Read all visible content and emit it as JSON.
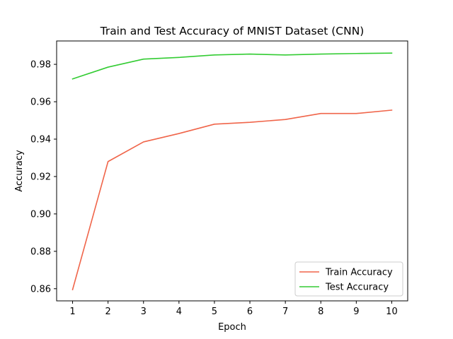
{
  "chart_data": {
    "type": "line",
    "title": "Train and Test Accuracy of MNIST Dataset (CNN)",
    "xlabel": "Epoch",
    "ylabel": "Accuracy",
    "x": [
      1,
      2,
      3,
      4,
      5,
      6,
      7,
      8,
      9,
      10
    ],
    "x_ticks": [
      "1",
      "2",
      "3",
      "4",
      "5",
      "6",
      "7",
      "8",
      "9",
      "10"
    ],
    "y_ticks": [
      "0.86",
      "0.88",
      "0.90",
      "0.92",
      "0.94",
      "0.96",
      "0.98"
    ],
    "y_tick_values": [
      0.86,
      0.88,
      0.9,
      0.92,
      0.94,
      0.96,
      0.98
    ],
    "xlim": [
      0.55,
      10.45
    ],
    "ylim": [
      0.8535,
      0.9925
    ],
    "grid": false,
    "legend_position": "lower-right",
    "series": [
      {
        "name": "Train Accuracy",
        "color": "#f0654a",
        "values": [
          0.8595,
          0.928,
          0.9385,
          0.943,
          0.948,
          0.949,
          0.9505,
          0.9537,
          0.9537,
          0.9555
        ]
      },
      {
        "name": "Test Accuracy",
        "color": "#33cc33",
        "values": [
          0.9722,
          0.9785,
          0.9828,
          0.9837,
          0.985,
          0.9855,
          0.985,
          0.9855,
          0.9858,
          0.986
        ]
      }
    ]
  }
}
